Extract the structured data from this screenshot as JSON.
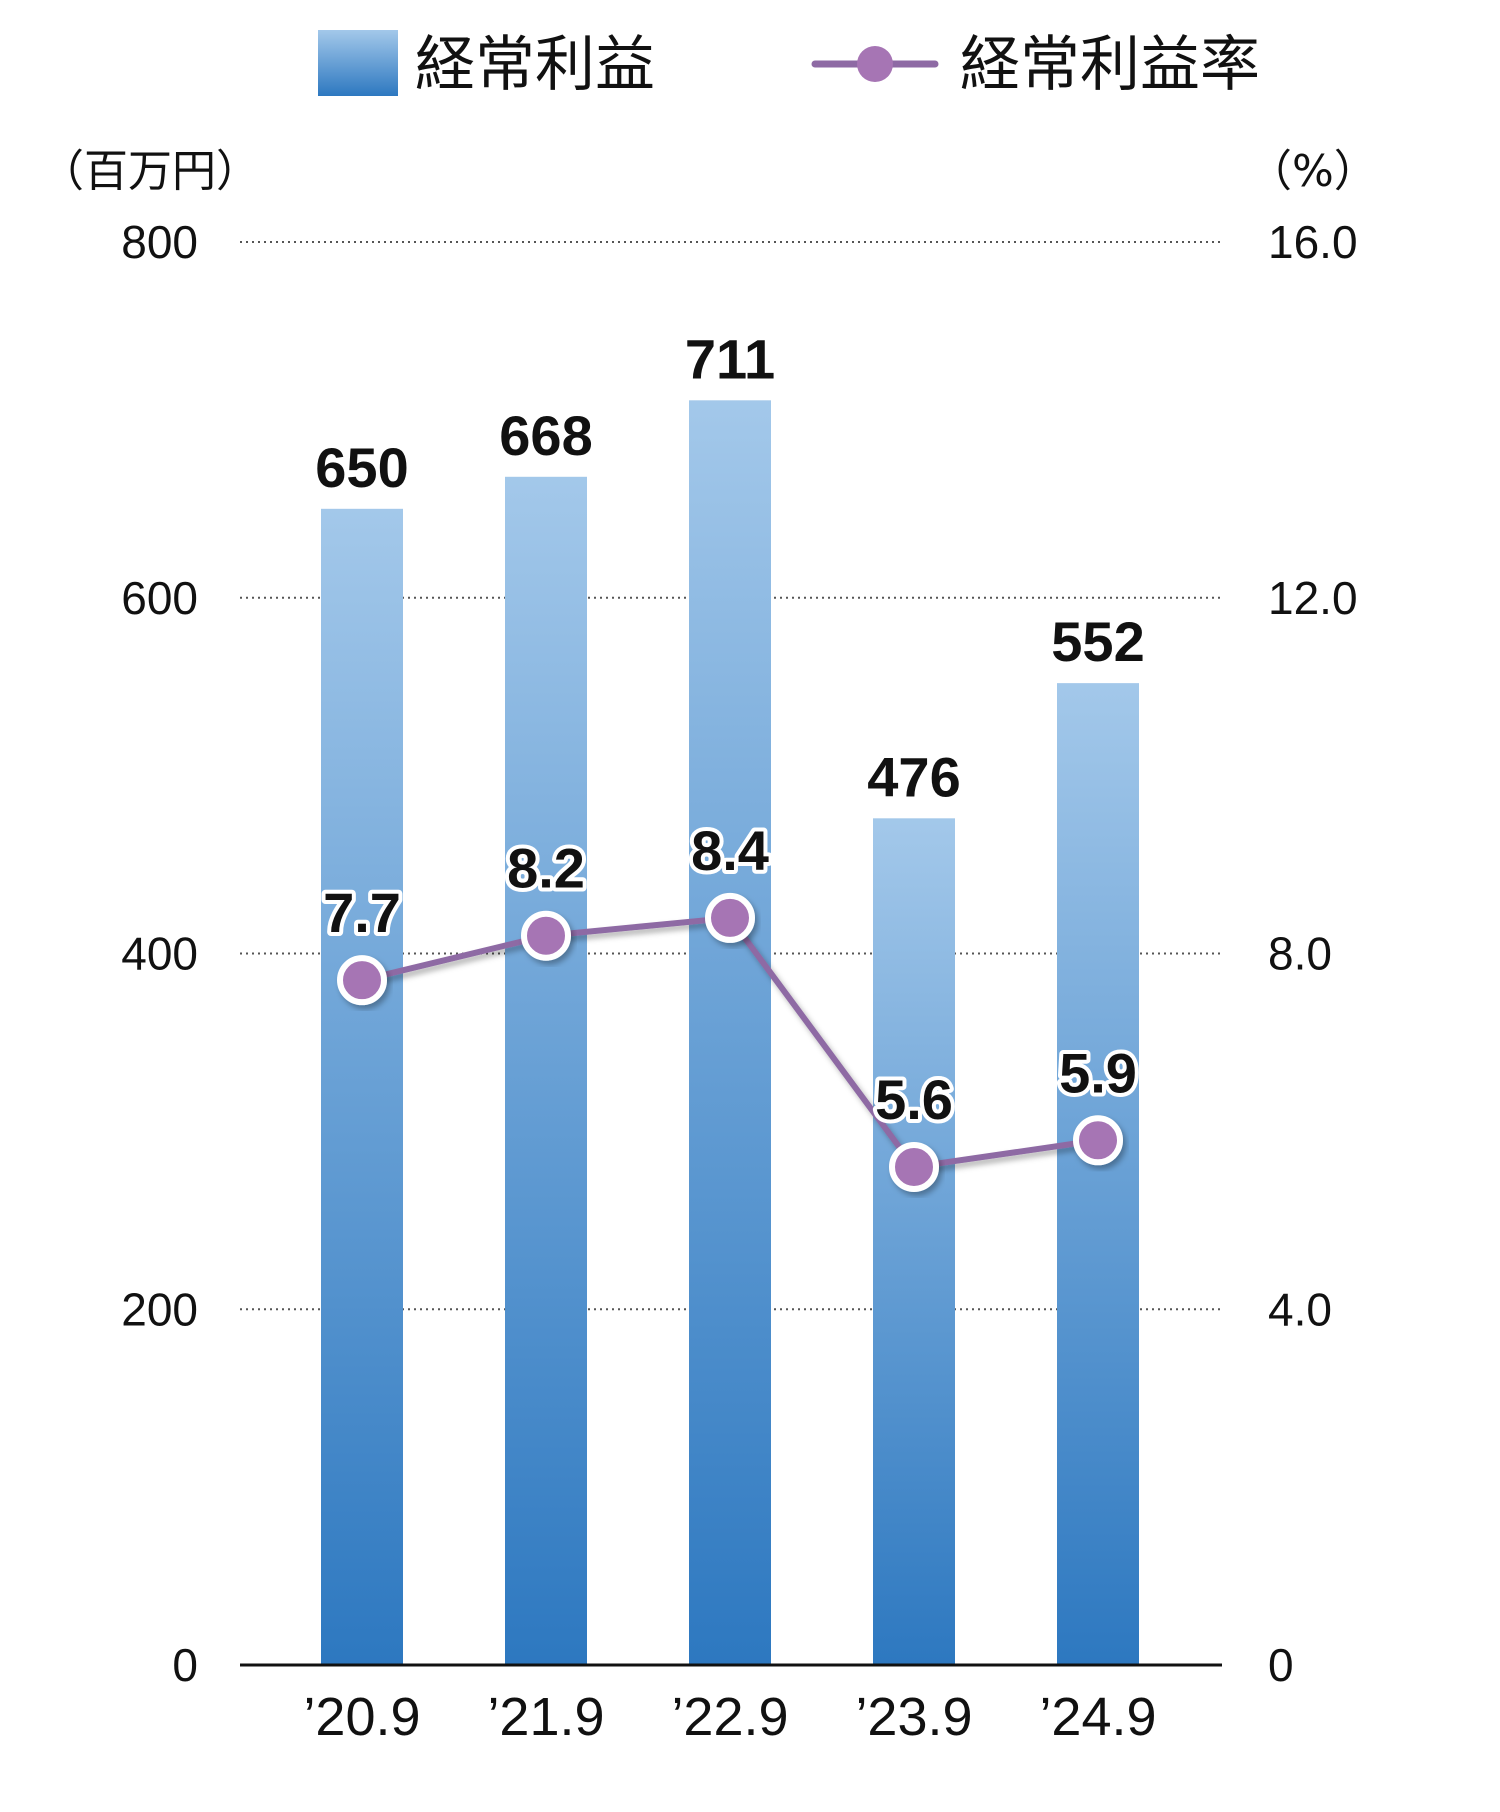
{
  "legend": {
    "bar_label": "経常利益",
    "line_label": "経常利益率"
  },
  "axes": {
    "left_unit": "（百万円）",
    "right_unit": "（%）",
    "left_ticks": [
      "0",
      "200",
      "400",
      "600",
      "800"
    ],
    "right_ticks": [
      "0",
      "4.0",
      "8.0",
      "12.0",
      "16.0"
    ]
  },
  "colors": {
    "bar_top": "#a3c8ea",
    "bar_bottom": "#2d78c0",
    "line": "#8e6aa4",
    "marker_fill": "#a675b4",
    "marker_stroke": "#ffffff",
    "grid": "#555555",
    "axis": "#111111"
  },
  "chart_data": {
    "type": "bar",
    "categories": [
      "’20.9",
      "’21.9",
      "’22.9",
      "’23.9",
      "’24.9"
    ],
    "series": [
      {
        "name": "経常利益",
        "type": "bar",
        "axis": "left",
        "values": [
          650,
          668,
          711,
          476,
          552
        ],
        "labels": [
          "650",
          "668",
          "711",
          "476",
          "552"
        ]
      },
      {
        "name": "経常利益率",
        "type": "line",
        "axis": "right",
        "values": [
          7.7,
          8.2,
          8.4,
          5.6,
          5.9
        ],
        "labels": [
          "7.7",
          "8.2",
          "8.4",
          "5.6",
          "5.9"
        ]
      }
    ],
    "ylim_left": [
      0,
      800
    ],
    "ylim_right": [
      0,
      16
    ],
    "grid": true,
    "legend_position": "top"
  }
}
